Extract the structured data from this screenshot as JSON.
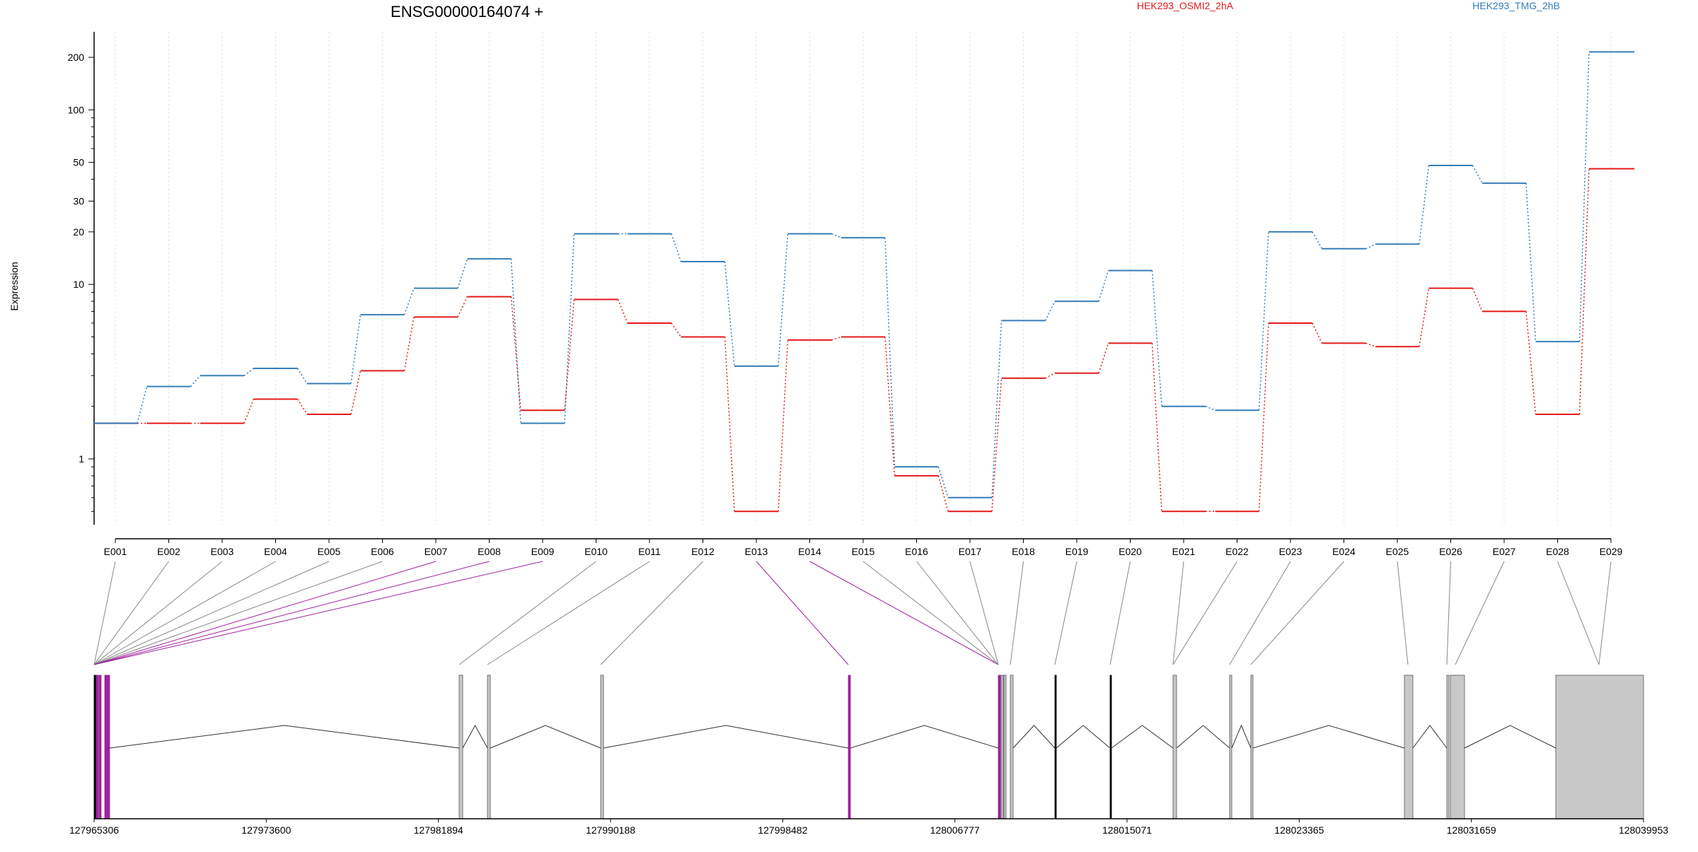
{
  "chart_data": {
    "type": "line",
    "title": "ENSG00000164074 +",
    "xlabel": "",
    "ylabel": "Expression",
    "yscale": "log",
    "ylim": [
      0.42,
      280
    ],
    "yticks": [
      "1",
      "10",
      "20",
      "30",
      "50",
      "100",
      "200"
    ],
    "grid": "vertical dotted at exon centers",
    "legend": "top-right",
    "categories": [
      "E001",
      "E002",
      "E003",
      "E004",
      "E005",
      "E006",
      "E007",
      "E008",
      "E009",
      "E010",
      "E011",
      "E012",
      "E013",
      "E014",
      "E015",
      "E016",
      "E017",
      "E018",
      "E019",
      "E020",
      "E021",
      "E022",
      "E023",
      "E024",
      "E025",
      "E026",
      "E027",
      "E028",
      "E029"
    ],
    "series": [
      {
        "name": "HEK293_OSMI2_2hA",
        "color": "#e41a1c",
        "values": [
          1.6,
          1.6,
          1.6,
          2.2,
          1.8,
          3.2,
          6.5,
          8.5,
          1.9,
          8.2,
          6.0,
          5.0,
          0.5,
          4.8,
          5.0,
          0.8,
          0.5,
          2.9,
          3.1,
          4.6,
          0.5,
          0.5,
          6.0,
          4.6,
          4.4,
          9.5,
          7.0,
          1.8,
          46
        ]
      },
      {
        "name": "HEK293_TMG_2hB",
        "color": "#377eb8",
        "values": [
          1.6,
          2.6,
          3.0,
          3.3,
          2.7,
          6.7,
          9.5,
          14,
          1.6,
          19.5,
          19.5,
          13.5,
          3.4,
          19.5,
          18.5,
          0.9,
          0.6,
          6.2,
          8.0,
          12,
          2.0,
          1.9,
          20,
          16,
          17,
          48,
          38,
          4.7,
          215
        ]
      }
    ],
    "gene_model": {
      "coordinates": [
        "127965306",
        "127973600",
        "127981894",
        "127990188",
        "127998482",
        "128006777",
        "128015071",
        "128023365",
        "128031659",
        "128039953"
      ]
    }
  }
}
